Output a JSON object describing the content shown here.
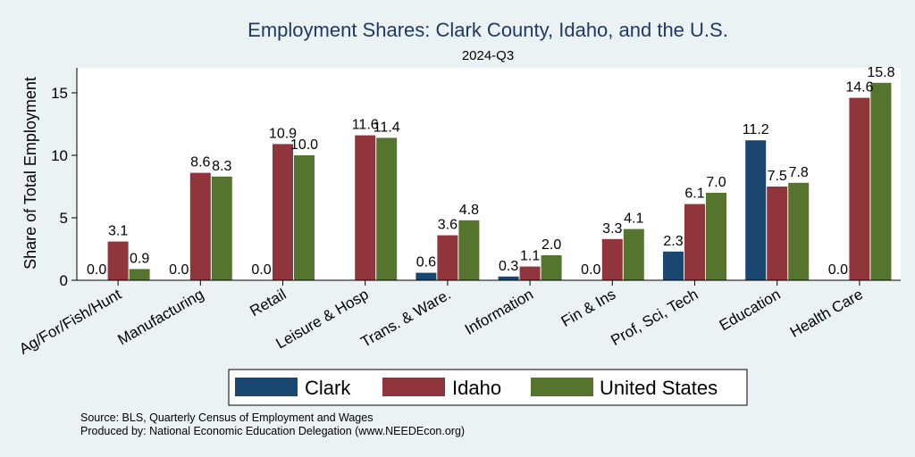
{
  "chart_data": {
    "type": "bar",
    "title": "Employment Shares: Clark County, Idaho, and the U.S.",
    "subtitle": "2024-Q3",
    "ylabel": "Share of Total Employment",
    "xlabel": "",
    "ylim": [
      0,
      17
    ],
    "yticks": [
      0,
      5,
      10,
      15
    ],
    "grid": false,
    "legend_position": "bottom",
    "categories": [
      "Ag/For/Fish/Hunt",
      "Manufacturing",
      "Retail",
      "Leisure & Hosp",
      "Trans. & Ware.",
      "Information",
      "Fin & Ins",
      "Prof, Sci, Tech",
      "Education",
      "Health Care"
    ],
    "series": [
      {
        "name": "Clark",
        "color": "#1a476f",
        "values": [
          0.0,
          0.0,
          0.0,
          null,
          0.6,
          0.3,
          0.0,
          2.3,
          11.2,
          0.0
        ],
        "labels": [
          "0.0",
          "0.0",
          "0.0",
          "",
          "0.6",
          "0.3",
          "0.0",
          "2.3",
          "11.2",
          "0.0"
        ]
      },
      {
        "name": "Idaho",
        "color": "#90353b",
        "values": [
          3.1,
          8.6,
          10.9,
          11.6,
          3.6,
          1.1,
          3.3,
          6.1,
          7.5,
          14.6
        ],
        "labels": [
          "3.1",
          "8.6",
          "10.9",
          "11.6",
          "3.6",
          "1.1",
          "3.3",
          "6.1",
          "7.5",
          "14.6"
        ]
      },
      {
        "name": "United States",
        "color": "#55752f",
        "values": [
          0.9,
          8.3,
          10.0,
          11.4,
          4.8,
          2.0,
          4.1,
          7.0,
          7.8,
          15.8
        ],
        "labels": [
          "0.9",
          "8.3",
          "10.0",
          "11.4",
          "4.8",
          "2.0",
          "4.1",
          "7.0",
          "7.8",
          "15.8"
        ]
      }
    ],
    "notes": [
      "Source: BLS, Quarterly Census of Employment and Wages",
      "Produced by: National Economic Education Delegation (www.NEEDEcon.org)"
    ]
  }
}
